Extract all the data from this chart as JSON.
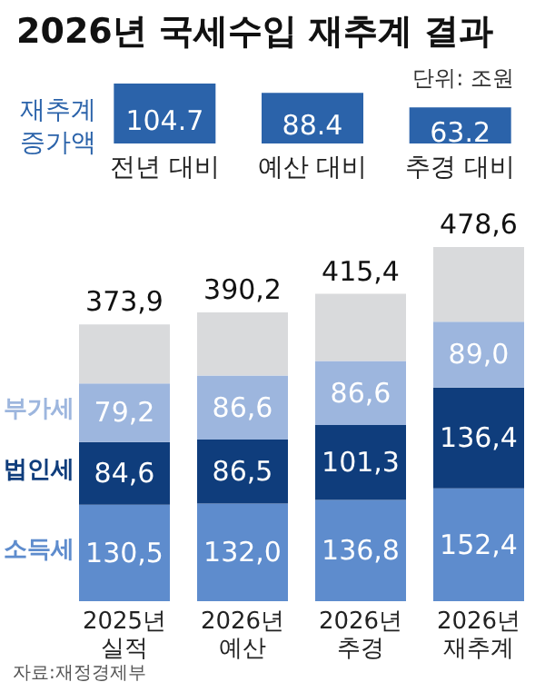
{
  "chart_data": [
    {
      "type": "bar",
      "title": "2026년 국세수입 재추계 결과",
      "ylabel": "재추계\n증가액",
      "annotations": [
        "단위: 조원"
      ],
      "categories": [
        "전년 대비",
        "예산 대비",
        "추경 대비"
      ],
      "values": [
        104.7,
        88.4,
        63.2
      ],
      "value_labels": [
        "104.7",
        "88.4",
        "63.2"
      ],
      "color": "#2b63aa",
      "legend": false
    },
    {
      "type": "bar",
      "stacked": true,
      "categories": [
        "2025년\n실적",
        "2026년\n예산",
        "2026년\n추경",
        "2026년\n재추계"
      ],
      "series": [
        {
          "name": "소득세",
          "color": "#5e8ccd",
          "values": [
            130.5,
            132.0,
            136.8,
            152.4
          ],
          "value_labels": [
            "130,5",
            "132,0",
            "136,8",
            "152,4"
          ]
        },
        {
          "name": "법인세",
          "color": "#0f3d7c",
          "values": [
            84.6,
            86.5,
            101.3,
            136.4
          ],
          "value_labels": [
            "84,6",
            "86,5",
            "101,3",
            "136,4"
          ]
        },
        {
          "name": "부가세",
          "color": "#9db6de",
          "values": [
            79.2,
            86.6,
            86.6,
            89.0
          ],
          "value_labels": [
            "79,2",
            "86,6",
            "86,6",
            "89,0"
          ]
        },
        {
          "color": "#d9dadc",
          "values": [
            79.6,
            85.1,
            90.7,
            100.8
          ],
          "value_labels": [
            null,
            null,
            null,
            null
          ]
        }
      ],
      "totals": [
        "373,9",
        "390,2",
        "415,4",
        "478,6"
      ],
      "annotations": [
        "자료:재정경제부"
      ],
      "legend": false
    }
  ]
}
